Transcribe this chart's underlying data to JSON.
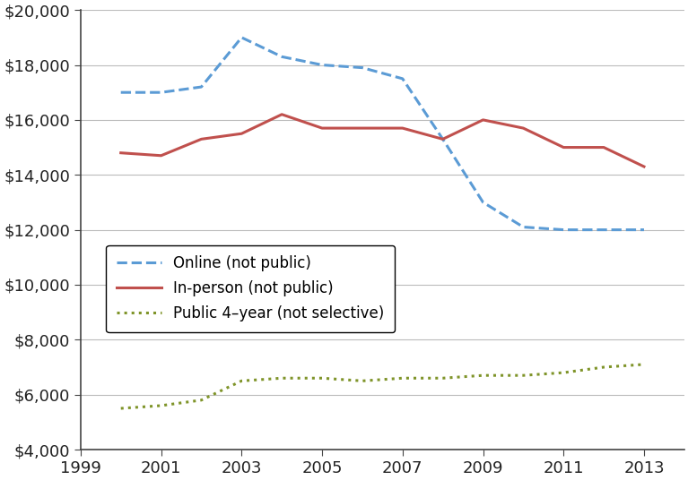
{
  "years": [
    2000,
    2001,
    2002,
    2003,
    2004,
    2005,
    2006,
    2007,
    2008,
    2009,
    2010,
    2011,
    2012,
    2013
  ],
  "online": [
    17000,
    17000,
    17200,
    19000,
    18300,
    18000,
    17900,
    17500,
    15300,
    13000,
    12100,
    12000,
    12000,
    12000
  ],
  "inperson": [
    14800,
    14700,
    15300,
    15500,
    16200,
    15700,
    15700,
    15700,
    15300,
    16000,
    15700,
    15000,
    15000,
    14300
  ],
  "public": [
    5500,
    5600,
    5800,
    6500,
    6600,
    6600,
    6500,
    6600,
    6600,
    6700,
    6700,
    6800,
    7000,
    7100
  ],
  "online_color": "#5B9BD5",
  "inperson_color": "#C0504D",
  "public_color": "#7F9429",
  "xlim": [
    1999,
    2014
  ],
  "ylim": [
    4000,
    20000
  ],
  "yticks": [
    4000,
    6000,
    8000,
    10000,
    12000,
    14000,
    16000,
    18000,
    20000
  ],
  "xticks": [
    1999,
    2001,
    2003,
    2005,
    2007,
    2009,
    2011,
    2013
  ],
  "legend_labels": [
    "Online (not public)",
    "In-person (not public)",
    "Public 4–year (not selective)"
  ],
  "bg_color": "#FFFFFF",
  "grid_color": "#BBBBBB",
  "spine_color": "#444444",
  "tick_label_color": "#222222",
  "font_size": 13,
  "legend_font_size": 12
}
